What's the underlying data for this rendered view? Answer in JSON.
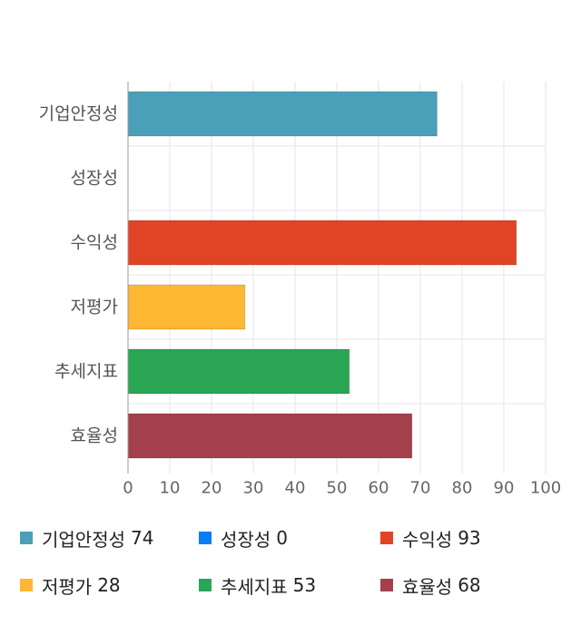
{
  "chart_data": {
    "type": "bar",
    "orientation": "horizontal",
    "categories": [
      "기업안정성",
      "성장성",
      "수익성",
      "저평가",
      "추세지표",
      "효율성"
    ],
    "values": [
      74,
      0,
      93,
      28,
      53,
      68
    ],
    "colors": [
      "#4aa0b9",
      "#0a7cf6",
      "#e14425",
      "#feb733",
      "#2ba654",
      "#a4404c"
    ],
    "xlim": [
      0,
      100
    ],
    "xticks": [
      0,
      10,
      20,
      30,
      40,
      50,
      60,
      70,
      80,
      90,
      100
    ],
    "grid": true,
    "legend_position": "bottom"
  }
}
